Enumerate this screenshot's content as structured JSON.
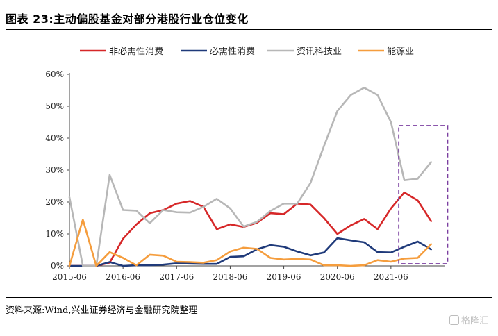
{
  "figure": {
    "title": "图表 23:主动偏股基金对部分港股行业仓位变化",
    "source": "资料来源:Wind,兴业证券经济与金融研究院整理",
    "watermark": "格隆汇"
  },
  "chart_data": {
    "type": "line",
    "title": "图表 23:主动偏股基金对部分港股行业仓位变化",
    "xlabel": "",
    "ylabel": "",
    "x_tick_labels": [
      "2015-06",
      "2016-06",
      "2017-06",
      "2018-06",
      "2019-06",
      "2020-06",
      "2021-06"
    ],
    "y_tick_labels": [
      "0%",
      "10%",
      "20%",
      "30%",
      "40%",
      "50%",
      "60%"
    ],
    "ylim": [
      0,
      60
    ],
    "y_unit": "%",
    "grid": false,
    "legend_position": "top",
    "x": [
      "2015-06",
      "2015-09",
      "2015-12",
      "2016-03",
      "2016-06",
      "2016-09",
      "2016-12",
      "2017-03",
      "2017-06",
      "2017-09",
      "2017-12",
      "2018-03",
      "2018-06",
      "2018-09",
      "2018-12",
      "2019-03",
      "2019-06",
      "2019-09",
      "2019-12",
      "2020-03",
      "2020-06",
      "2020-09",
      "2020-12",
      "2021-03",
      "2021-06",
      "2021-09",
      "2021-12",
      "2022-03",
      "2022-06"
    ],
    "series": [
      {
        "name": "非必需性消费",
        "color": "#d62728",
        "values": [
          0,
          0,
          0,
          1.0,
          8.5,
          13.0,
          16.5,
          17.5,
          19.5,
          20.3,
          18.5,
          11.5,
          13.0,
          12.2,
          13.5,
          16.5,
          16.2,
          19.5,
          19.2,
          15.0,
          10.0,
          12.7,
          14.7,
          11.5,
          18.0,
          23.0,
          20.5,
          14.0,
          null
        ]
      },
      {
        "name": "必需性消费",
        "color": "#1f3a7a",
        "values": [
          0,
          0,
          0,
          1.2,
          0,
          0.2,
          0.2,
          0.4,
          0.8,
          0.7,
          0.6,
          0.6,
          2.8,
          3.0,
          5.2,
          6.5,
          6.0,
          4.5,
          3.3,
          4.2,
          8.7,
          8.0,
          7.4,
          4.3,
          4.2,
          6.0,
          7.6,
          5.2,
          null
        ]
      },
      {
        "name": "资讯科技业",
        "color": "#b7b7b7",
        "values": [
          21.5,
          0,
          0,
          28.5,
          17.5,
          17.3,
          13.4,
          17.5,
          16.8,
          16.7,
          18.5,
          21.0,
          18.0,
          12.3,
          13.8,
          17.2,
          19.5,
          19.5,
          26.0,
          37.5,
          48.5,
          53.5,
          55.8,
          53.5,
          45.0,
          26.8,
          27.3,
          32.5,
          null
        ]
      },
      {
        "name": "能源业",
        "color": "#f59d3d",
        "values": [
          0,
          14.5,
          0,
          4.3,
          2.5,
          0.2,
          3.5,
          3.2,
          1.3,
          1.2,
          1.0,
          1.8,
          4.5,
          5.7,
          5.3,
          2.5,
          2.0,
          2.2,
          2.0,
          0.2,
          0.2,
          0,
          0.2,
          1.8,
          1.3,
          2.3,
          2.5,
          6.8,
          null
        ]
      }
    ],
    "annotation": {
      "type": "dashed-rectangle",
      "color": "#7b3fa0",
      "x_start": "2021-09",
      "x_end": "2021-12"
    }
  }
}
